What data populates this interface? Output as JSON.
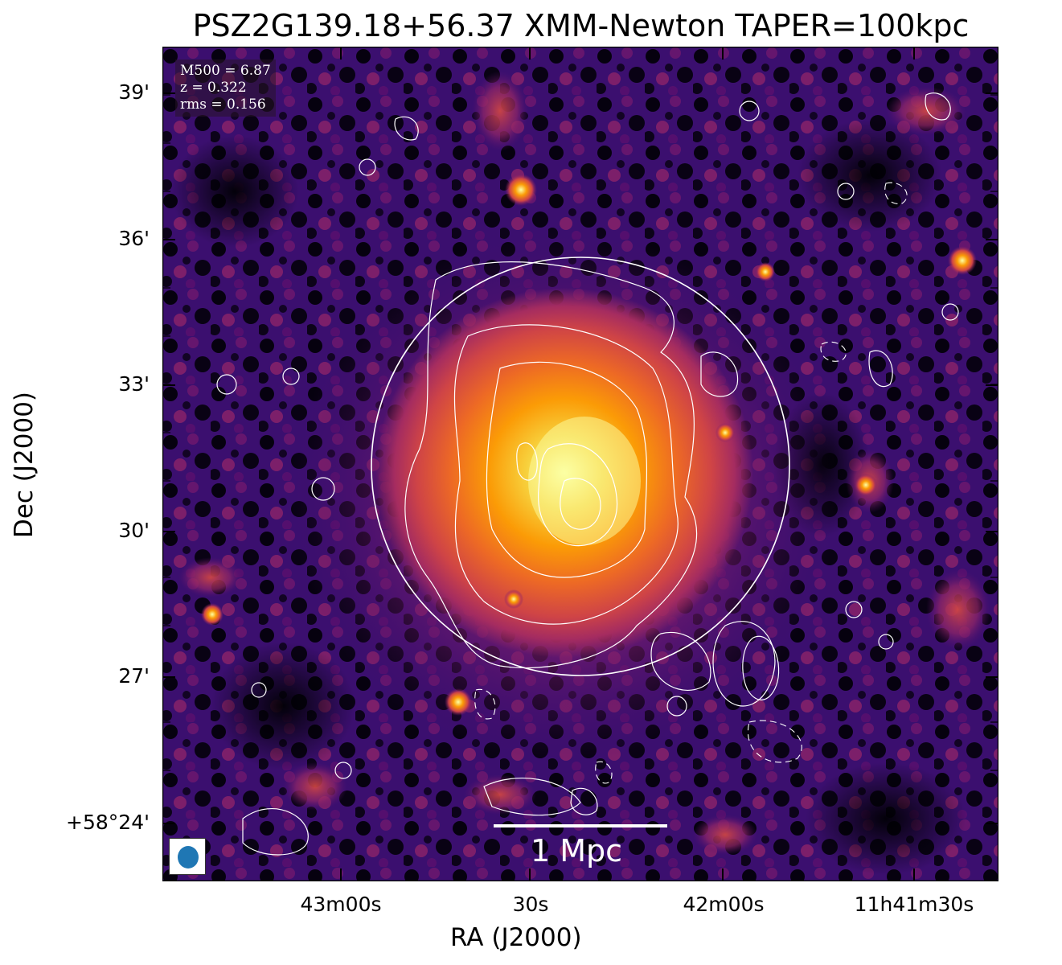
{
  "title": "PSZ2G139.18+56.37 XMM-Newton TAPER=100kpc",
  "axes": {
    "xlabel": "RA (J2000)",
    "ylabel": "Dec (J2000)",
    "y_ticks": [
      "39'",
      "36'",
      "33'",
      "30'",
      "27'",
      "+58°24'"
    ],
    "x_ticks": [
      "43m00s",
      "30s",
      "42m00s",
      "11h41m30s"
    ]
  },
  "info": {
    "mass": "M500 = 6.87",
    "redshift": "z = 0.322",
    "rms": "rms = 0.156"
  },
  "scalebar": {
    "label": "1 Mpc"
  },
  "beam": {
    "color": "#1f77b4"
  },
  "image": {
    "colormap": "inferno",
    "contour_color": "#ffffff",
    "background": "#0a0510"
  }
}
